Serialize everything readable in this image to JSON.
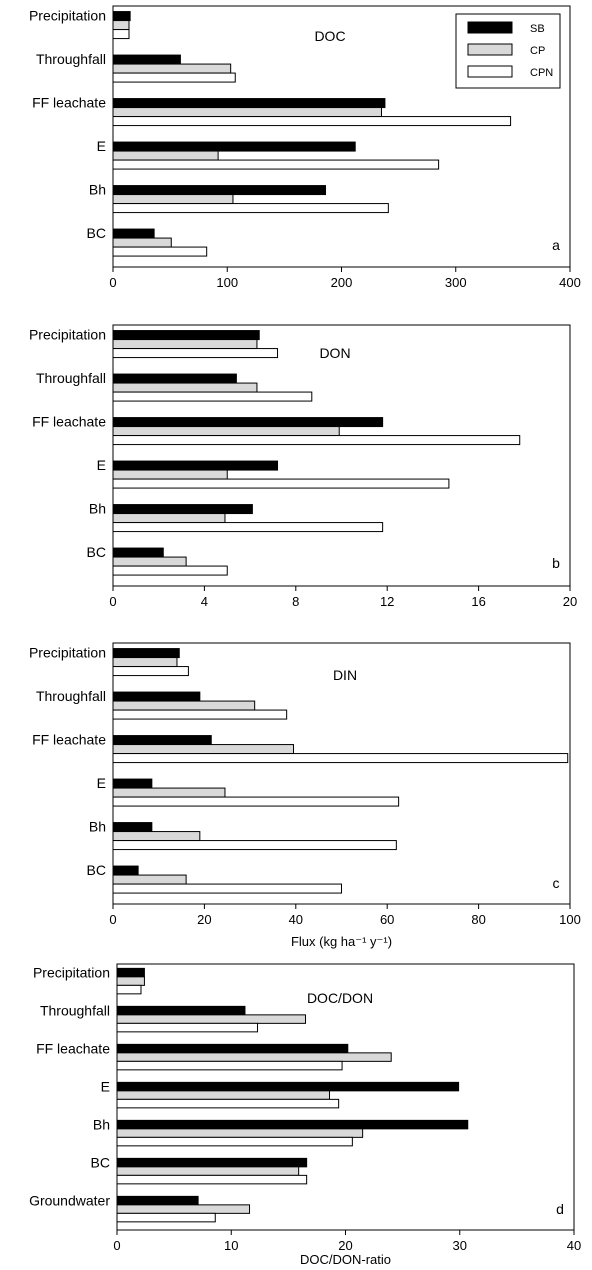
{
  "colors": {
    "SB": "#000000",
    "CP": "#d9d9d9",
    "CPN": "#ffffff",
    "outline": "#000000"
  },
  "legend": {
    "position": "top-right",
    "entries": [
      {
        "key": "SB",
        "label": "SB"
      },
      {
        "key": "CP",
        "label": "CP"
      },
      {
        "key": "CPN",
        "label": "CPN"
      }
    ]
  },
  "chart_data": [
    {
      "type": "bar",
      "orientation": "horizontal",
      "panel_title": "DOC",
      "panel_letter": "a",
      "xlabel": "",
      "xlim": [
        0,
        400
      ],
      "xticks": [
        0,
        100,
        200,
        300,
        400
      ],
      "categories": [
        "Precipitation",
        "Throughfall",
        "FF leachate",
        "E",
        "Bh",
        "BC"
      ],
      "series": [
        {
          "name": "SB",
          "values": [
            15,
            59,
            238,
            212,
            186,
            36
          ]
        },
        {
          "name": "CP",
          "values": [
            14,
            103,
            235,
            92,
            105,
            51
          ]
        },
        {
          "name": "CPN",
          "values": [
            14,
            107,
            348,
            285,
            241,
            82
          ]
        }
      ]
    },
    {
      "type": "bar",
      "orientation": "horizontal",
      "panel_title": "DON",
      "panel_letter": "b",
      "xlabel": "",
      "xlim": [
        0,
        20
      ],
      "xticks": [
        0,
        4,
        8,
        12,
        16,
        20
      ],
      "categories": [
        "Precipitation",
        "Throughfall",
        "FF leachate",
        "E",
        "Bh",
        "BC"
      ],
      "series": [
        {
          "name": "SB",
          "values": [
            6.4,
            5.4,
            11.8,
            7.2,
            6.1,
            2.2
          ]
        },
        {
          "name": "CP",
          "values": [
            6.3,
            6.3,
            9.9,
            5.0,
            4.9,
            3.2
          ]
        },
        {
          "name": "CPN",
          "values": [
            7.2,
            8.7,
            17.8,
            14.7,
            11.8,
            5.0
          ]
        }
      ]
    },
    {
      "type": "bar",
      "orientation": "horizontal",
      "panel_title": "DIN",
      "panel_letter": "c",
      "xlabel": "Flux (kg ha⁻¹ y⁻¹)",
      "xlim": [
        0,
        100
      ],
      "xticks": [
        0,
        20,
        40,
        60,
        80,
        100
      ],
      "categories": [
        "Precipitation",
        "Throughfall",
        "FF leachate",
        "E",
        "Bh",
        "BC"
      ],
      "series": [
        {
          "name": "SB",
          "values": [
            14.5,
            19,
            21.5,
            8.5,
            8.5,
            5.5
          ]
        },
        {
          "name": "CP",
          "values": [
            14,
            31,
            39.5,
            24.5,
            19,
            16
          ]
        },
        {
          "name": "CPN",
          "values": [
            16.5,
            38,
            99.5,
            62.5,
            62,
            50
          ]
        }
      ]
    },
    {
      "type": "bar",
      "orientation": "horizontal",
      "panel_title": "DOC/DON",
      "panel_letter": "d",
      "xlabel": "DOC/DON-ratio",
      "xlim": [
        0,
        40
      ],
      "xticks": [
        0,
        10,
        20,
        30,
        40
      ],
      "categories": [
        "Precipitation",
        "Throughfall",
        "FF leachate",
        "E",
        "Bh",
        "BC",
        "Groundwater"
      ],
      "series": [
        {
          "name": "SB",
          "values": [
            2.4,
            11.2,
            20.2,
            29.9,
            30.7,
            16.6,
            7.1
          ]
        },
        {
          "name": "CP",
          "values": [
            2.4,
            16.5,
            24.0,
            18.6,
            21.5,
            15.9,
            11.6
          ]
        },
        {
          "name": "CPN",
          "values": [
            2.1,
            12.3,
            19.7,
            19.4,
            20.6,
            16.6,
            8.6
          ]
        }
      ]
    }
  ]
}
